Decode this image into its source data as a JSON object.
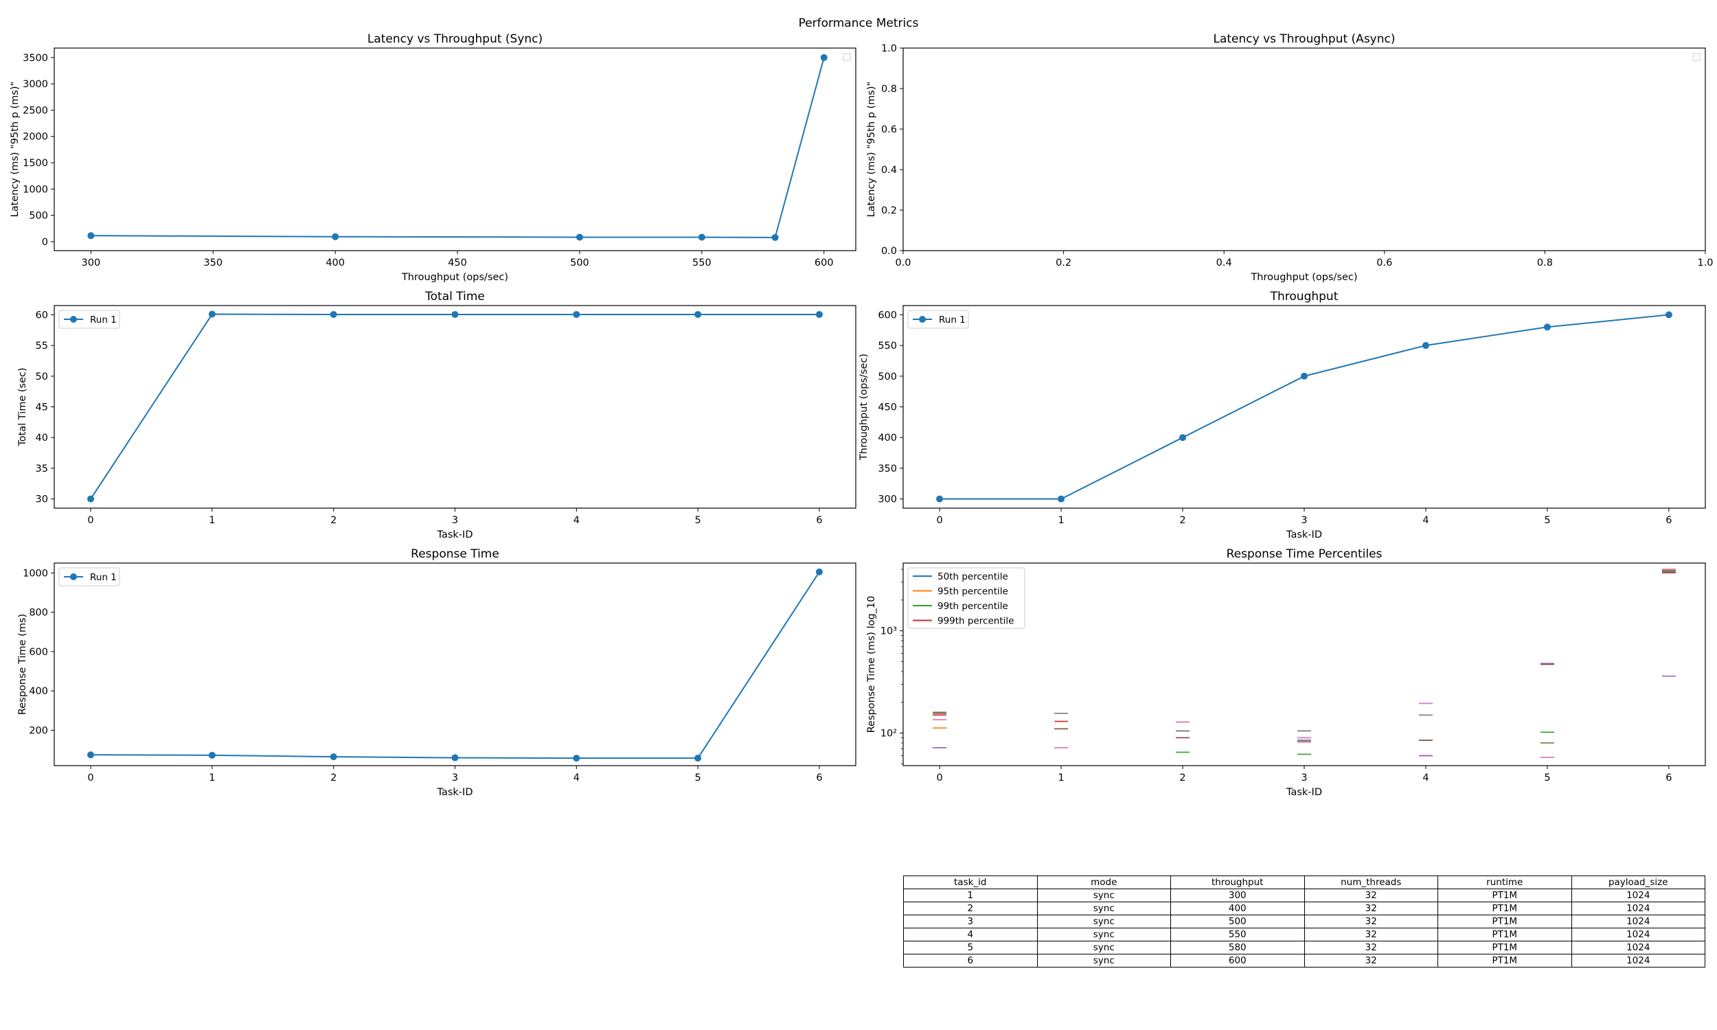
{
  "figure": {
    "title": "Performance Metrics"
  },
  "colors": {
    "series": "#1f77b4",
    "p50": "#1f77b4",
    "p95": "#ff7f0e",
    "p99": "#2ca02c",
    "p999": "#d62728",
    "tab10": [
      "#1f77b4",
      "#ff7f0e",
      "#2ca02c",
      "#d62728",
      "#9467bd",
      "#8c564b",
      "#e377c2",
      "#7f7f7f",
      "#bcbd22",
      "#17becf"
    ]
  },
  "chart_data": [
    {
      "id": "sync",
      "type": "line",
      "title": "Latency vs Throughput (Sync)",
      "xlabel": "Throughput (ops/sec)",
      "ylabel": "Latency (ms) \"95th p (ms)\"",
      "xlim": [
        285,
        613
      ],
      "ylim": [
        -170,
        3680
      ],
      "xticks": [
        300,
        350,
        400,
        450,
        500,
        550,
        600
      ],
      "yticks": [
        0,
        500,
        1000,
        1500,
        2000,
        2500,
        3000,
        3500
      ],
      "x": [
        300,
        400,
        500,
        550,
        580,
        600
      ],
      "series": [
        {
          "values": [
            115,
            95,
            85,
            85,
            80,
            3500
          ]
        }
      ],
      "legend": "top-right (empty)",
      "grid": false
    },
    {
      "id": "async",
      "type": "line",
      "title": "Latency vs Throughput (Async)",
      "xlabel": "Throughput (ops/sec)",
      "ylabel": "Latency (ms) \"95th p (ms)\"",
      "xlim": [
        0,
        1
      ],
      "ylim": [
        0,
        1
      ],
      "xticks": [
        "0.0",
        "0.2",
        "0.4",
        "0.6",
        "0.8",
        "1.0"
      ],
      "yticks": [
        "0.0",
        "0.2",
        "0.4",
        "0.6",
        "0.8",
        "1.0"
      ],
      "x": [],
      "series": [],
      "legend": "top-right (empty)",
      "grid": false
    },
    {
      "id": "total",
      "type": "line",
      "title": "Total Time",
      "xlabel": "Task-ID",
      "ylabel": "Total Time (sec)",
      "xlim": [
        -0.3,
        6.3
      ],
      "ylim": [
        28.5,
        61.5
      ],
      "xticks": [
        0,
        1,
        2,
        3,
        4,
        5,
        6
      ],
      "yticks": [
        30,
        35,
        40,
        45,
        50,
        55,
        60
      ],
      "x": [
        0,
        1,
        2,
        3,
        4,
        5,
        6
      ],
      "series": [
        {
          "name": "Run 1",
          "values": [
            30,
            60.1,
            60.05,
            60.05,
            60.05,
            60.05,
            60.05
          ]
        }
      ],
      "legend": "top-left",
      "grid": false
    },
    {
      "id": "thr",
      "type": "line",
      "title": "Throughput",
      "xlabel": "Task-ID",
      "ylabel": "Throughput (ops/sec)",
      "xlim": [
        -0.3,
        6.3
      ],
      "ylim": [
        285,
        615
      ],
      "xticks": [
        0,
        1,
        2,
        3,
        4,
        5,
        6
      ],
      "yticks": [
        300,
        350,
        400,
        450,
        500,
        550,
        600
      ],
      "x": [
        0,
        1,
        2,
        3,
        4,
        5,
        6
      ],
      "series": [
        {
          "name": "Run 1",
          "values": [
            300,
            300,
            400,
            500,
            550,
            580,
            600
          ]
        }
      ],
      "legend": "top-left",
      "grid": false
    },
    {
      "id": "resp",
      "type": "line",
      "title": "Response Time",
      "xlabel": "Task-ID",
      "ylabel": "Response Time (ms)",
      "xlim": [
        -0.3,
        6.3
      ],
      "ylim": [
        20,
        1050
      ],
      "xticks": [
        0,
        1,
        2,
        3,
        4,
        5,
        6
      ],
      "yticks": [
        200,
        400,
        600,
        800,
        1000
      ],
      "x": [
        0,
        1,
        2,
        3,
        4,
        5,
        6
      ],
      "series": [
        {
          "name": "Run 1",
          "values": [
            75,
            73,
            65,
            60,
            58,
            58,
            1005
          ]
        }
      ],
      "legend": "top-left",
      "grid": false
    },
    {
      "id": "pct",
      "type": "scatter",
      "title": "Response Time Percentiles",
      "xlabel": "Task-ID",
      "ylabel": "Response Time (ms) log_10",
      "yscale": "log",
      "xlim": [
        -0.3,
        6.3
      ],
      "ylim": [
        48,
        4600
      ],
      "xticks": [
        0,
        1,
        2,
        3,
        4,
        5,
        6
      ],
      "yticks": [
        {
          "value": 100,
          "label": "10²"
        },
        {
          "value": 1000,
          "label": "10³"
        }
      ],
      "legend_entries": [
        "50th percentile",
        "95th percentile",
        "99th percentile",
        "999th percentile"
      ],
      "legend": "top-left",
      "grid": false,
      "marks": [
        {
          "x": 0,
          "values": [
            72,
            112,
            135,
            150,
            72,
            156,
            135,
            160
          ]
        },
        {
          "x": 1,
          "values": [
            72,
            110,
            110,
            130,
            156,
            110,
            72,
            156
          ]
        },
        {
          "x": 2,
          "values": [
            105,
            128,
            65,
            90,
            105,
            90,
            128,
            105
          ]
        },
        {
          "x": 3,
          "values": [
            85,
            90,
            62,
            82,
            105,
            90,
            90,
            105
          ]
        },
        {
          "x": 4,
          "values": [
            195,
            150,
            85,
            60,
            60,
            85,
            195,
            150
          ]
        },
        {
          "x": 5,
          "values": [
            58,
            80,
            102,
            470,
            480,
            470,
            58,
            80
          ]
        },
        {
          "x": 6,
          "values": [
            3700,
            4000,
            3850,
            3750,
            360,
            3700,
            4000,
            3900
          ]
        }
      ]
    }
  ],
  "table": {
    "columns": [
      "task_id",
      "mode",
      "throughput",
      "num_threads",
      "runtime",
      "payload_size"
    ],
    "rows": [
      [
        "1",
        "sync",
        "300",
        "32",
        "PT1M",
        "1024"
      ],
      [
        "2",
        "sync",
        "400",
        "32",
        "PT1M",
        "1024"
      ],
      [
        "3",
        "sync",
        "500",
        "32",
        "PT1M",
        "1024"
      ],
      [
        "4",
        "sync",
        "550",
        "32",
        "PT1M",
        "1024"
      ],
      [
        "5",
        "sync",
        "580",
        "32",
        "PT1M",
        "1024"
      ],
      [
        "6",
        "sync",
        "600",
        "32",
        "PT1M",
        "1024"
      ]
    ]
  }
}
